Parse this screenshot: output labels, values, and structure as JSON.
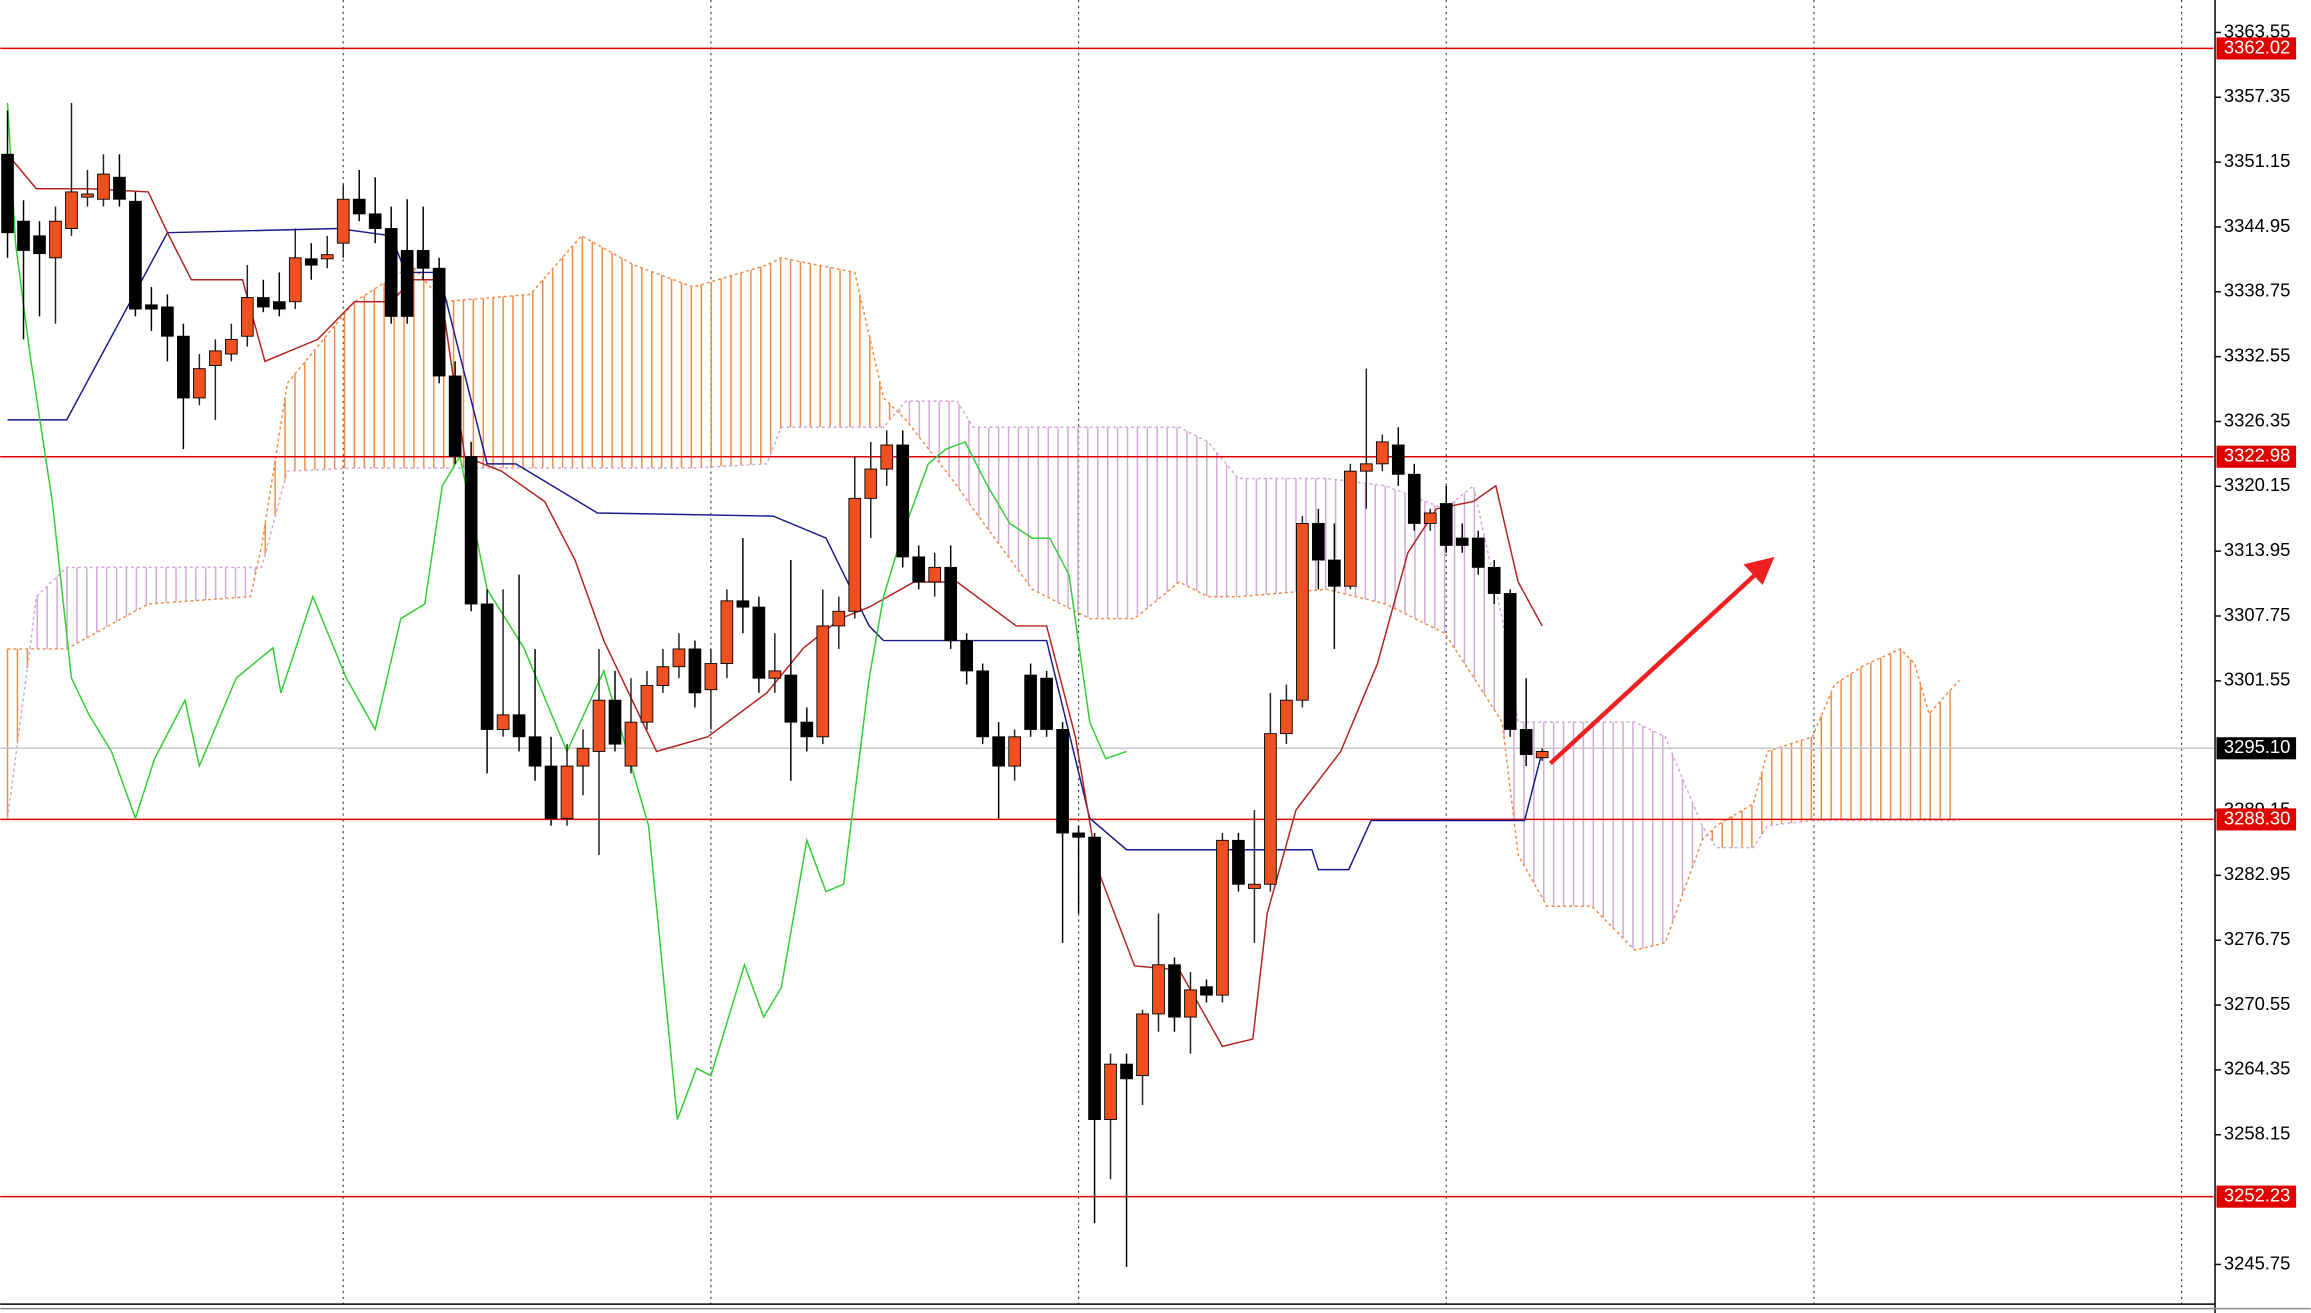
{
  "chart_data": {
    "type": "candlestick",
    "xlim": [
      -0.46,
      138
    ],
    "ylim": [
      3241.95,
      3366.65
    ],
    "yticks": [
      3363.55,
      3357.35,
      3351.15,
      3344.95,
      3338.75,
      3332.55,
      3326.35,
      3320.15,
      3313.95,
      3307.75,
      3301.55,
      3289.15,
      3282.95,
      3276.75,
      3270.55,
      3264.35,
      3258.15,
      3245.75
    ],
    "up_color": "#f0501e",
    "down_color": "#000000",
    "level_color": "#e00000",
    "levels": [
      3362.02,
      3322.98,
      {
        "value": 3288.3,
        "label": "3288.30"
      },
      3252.23
    ],
    "current_price": {
      "value": 3295.1,
      "label": "3295.10"
    },
    "candles": [
      [
        3351.9,
        3356.1,
        3342.0,
        3344.4
      ],
      [
        3345.5,
        3347.5,
        3334.2,
        3342.7
      ],
      [
        3344.1,
        3345.5,
        3336.4,
        3342.4
      ],
      [
        3342.0,
        3346.9,
        3335.7,
        3345.5
      ],
      [
        3344.8,
        3356.8,
        3344.1,
        3348.3
      ],
      [
        3347.8,
        3350.4,
        3346.9,
        3348.1
      ],
      [
        3347.6,
        3351.9,
        3346.9,
        3350.0
      ],
      [
        3349.7,
        3351.9,
        3346.9,
        3347.6
      ],
      [
        3347.4,
        3348.3,
        3336.4,
        3337.1
      ],
      [
        3337.5,
        3339.2,
        3335.0,
        3337.1
      ],
      [
        3337.3,
        3338.5,
        3332.1,
        3334.5
      ],
      [
        3334.5,
        3335.7,
        3323.7,
        3328.6
      ],
      [
        3328.6,
        3332.8,
        3327.9,
        3331.4
      ],
      [
        3331.7,
        3334.2,
        3326.5,
        3333.1
      ],
      [
        3332.8,
        3335.7,
        3332.1,
        3334.2
      ],
      [
        3334.5,
        3341.3,
        3333.5,
        3338.2
      ],
      [
        3338.2,
        3339.9,
        3336.8,
        3337.3
      ],
      [
        3337.8,
        3340.6,
        3336.4,
        3337.1
      ],
      [
        3337.8,
        3344.8,
        3337.1,
        3342.0
      ],
      [
        3341.9,
        3343.4,
        3339.9,
        3341.3
      ],
      [
        3341.9,
        3344.1,
        3341.0,
        3342.3
      ],
      [
        3343.4,
        3349.0,
        3342.0,
        3347.6
      ],
      [
        3347.6,
        3350.4,
        3345.5,
        3346.2
      ],
      [
        3346.2,
        3349.7,
        3343.4,
        3344.8
      ],
      [
        3344.8,
        3346.9,
        3335.7,
        3336.4
      ],
      [
        3342.7,
        3347.6,
        3335.7,
        3336.4
      ],
      [
        3342.7,
        3346.9,
        3339.9,
        3341.0
      ],
      [
        3341.0,
        3342.0,
        3330.0,
        3330.7
      ],
      [
        3330.7,
        3332.1,
        3322.3,
        3323.0
      ],
      [
        3323.0,
        3324.4,
        3308.2,
        3308.9
      ],
      [
        3308.9,
        3310.3,
        3292.7,
        3296.9
      ],
      [
        3296.9,
        3310.3,
        3296.2,
        3298.3
      ],
      [
        3298.3,
        3311.7,
        3294.8,
        3296.2
      ],
      [
        3296.2,
        3304.6,
        3292.0,
        3293.4
      ],
      [
        3293.4,
        3296.2,
        3287.7,
        3288.4
      ],
      [
        3288.4,
        3295.5,
        3287.7,
        3293.4
      ],
      [
        3293.4,
        3296.9,
        3290.6,
        3295.1
      ],
      [
        3294.8,
        3304.6,
        3284.9,
        3299.7
      ],
      [
        3299.7,
        3302.5,
        3294.8,
        3295.5
      ],
      [
        3293.4,
        3301.8,
        3292.7,
        3297.6
      ],
      [
        3297.6,
        3302.5,
        3296.9,
        3301.1
      ],
      [
        3301.1,
        3304.6,
        3300.4,
        3302.9
      ],
      [
        3302.9,
        3306.1,
        3301.8,
        3304.6
      ],
      [
        3304.6,
        3305.4,
        3299.0,
        3300.4
      ],
      [
        3300.7,
        3304.6,
        3296.9,
        3303.2
      ],
      [
        3303.2,
        3310.3,
        3301.8,
        3309.2
      ],
      [
        3309.2,
        3315.2,
        3306.1,
        3308.6
      ],
      [
        3308.6,
        3309.6,
        3300.4,
        3301.8
      ],
      [
        3301.8,
        3306.1,
        3300.4,
        3302.5
      ],
      [
        3302.1,
        3313.1,
        3292.0,
        3297.6
      ],
      [
        3297.6,
        3299.0,
        3294.8,
        3296.2
      ],
      [
        3296.2,
        3310.3,
        3295.5,
        3306.8
      ],
      [
        3306.8,
        3309.6,
        3304.6,
        3308.2
      ],
      [
        3308.2,
        3323.0,
        3307.5,
        3319.0
      ],
      [
        3319.0,
        3324.4,
        3315.2,
        3321.8
      ],
      [
        3321.8,
        3325.5,
        3320.2,
        3324.1
      ],
      [
        3324.1,
        3325.5,
        3312.4,
        3313.4
      ],
      [
        3313.4,
        3314.5,
        3310.3,
        3311.0
      ],
      [
        3311.0,
        3313.8,
        3309.6,
        3312.4
      ],
      [
        3312.4,
        3314.5,
        3304.6,
        3305.4
      ],
      [
        3305.4,
        3306.1,
        3301.2,
        3302.5
      ],
      [
        3302.5,
        3303.2,
        3295.5,
        3296.2
      ],
      [
        3296.2,
        3297.6,
        3288.4,
        3293.4
      ],
      [
        3293.4,
        3296.9,
        3292.0,
        3296.2
      ],
      [
        3302.1,
        3303.2,
        3296.2,
        3296.9
      ],
      [
        3301.8,
        3302.5,
        3296.2,
        3296.9
      ],
      [
        3296.9,
        3297.6,
        3276.5,
        3287.0
      ],
      [
        3287.0,
        3287.7,
        3279.3,
        3286.6
      ],
      [
        3286.6,
        3287.0,
        3249.7,
        3259.6
      ],
      [
        3259.6,
        3265.9,
        3253.9,
        3264.9
      ],
      [
        3264.9,
        3265.9,
        3245.5,
        3263.5
      ],
      [
        3263.8,
        3270.1,
        3261.0,
        3269.7
      ],
      [
        3269.7,
        3279.3,
        3268.0,
        3274.4
      ],
      [
        3274.4,
        3275.1,
        3268.0,
        3269.4
      ],
      [
        3269.4,
        3273.7,
        3265.9,
        3272.0
      ],
      [
        3272.3,
        3273.0,
        3270.8,
        3271.5
      ],
      [
        3271.5,
        3287.0,
        3270.8,
        3286.3
      ],
      [
        3286.3,
        3287.0,
        3281.4,
        3282.1
      ],
      [
        3281.7,
        3289.2,
        3276.5,
        3282.1
      ],
      [
        3282.1,
        3300.4,
        3281.4,
        3296.5
      ],
      [
        3296.5,
        3301.2,
        3295.5,
        3299.7
      ],
      [
        3299.7,
        3317.3,
        3299.0,
        3316.6
      ],
      [
        3316.6,
        3318.0,
        3310.3,
        3313.1
      ],
      [
        3313.1,
        3316.6,
        3304.6,
        3310.6
      ],
      [
        3310.6,
        3322.3,
        3310.3,
        3321.6
      ],
      [
        3321.6,
        3331.4,
        3318.0,
        3322.3
      ],
      [
        3322.3,
        3325.1,
        3321.6,
        3324.4
      ],
      [
        3324.1,
        3325.8,
        3320.2,
        3321.3
      ],
      [
        3321.3,
        3322.3,
        3315.9,
        3316.6
      ],
      [
        3316.6,
        3318.0,
        3315.9,
        3317.6
      ],
      [
        3318.5,
        3320.2,
        3313.8,
        3314.5
      ],
      [
        3315.2,
        3316.6,
        3313.8,
        3314.5
      ],
      [
        3315.2,
        3315.9,
        3311.7,
        3312.4
      ],
      [
        3312.4,
        3313.1,
        3308.9,
        3309.9
      ],
      [
        3309.9,
        3310.3,
        3296.2,
        3296.9
      ],
      [
        3296.9,
        3301.8,
        3293.4,
        3294.5
      ],
      [
        3294.2,
        3295.1,
        3293.9,
        3294.8
      ]
    ],
    "lines": [
      {
        "color": "#1a1a8c",
        "x": [
          0,
          3.7,
          10,
          20.7,
          24,
          24.9,
          27,
          30,
          31.8,
          36.9,
          47.9,
          51.2,
          53.9,
          54.8,
          65,
          67.7,
          70,
          81.6,
          82,
          83.9,
          85.3,
          94.9,
          96
        ],
        "values": [
          3326.5,
          3326.5,
          3344.4,
          3344.8,
          3344.1,
          3340.6,
          3340.6,
          3322.3,
          3322.3,
          3317.6,
          3317.3,
          3315.2,
          3306.8,
          3305.4,
          3305.4,
          3288.4,
          3285.4,
          3285.4,
          3283.5,
          3283.5,
          3288.2,
          3288.2,
          3294.8
        ]
      },
      {
        "color": "#b22222",
        "x": [
          0,
          1.8,
          5.1,
          8.8,
          10.1,
          11.5,
          14.7,
          16.1,
          19.4,
          21.7,
          24,
          25.3,
          27,
          28.6,
          30.9,
          33.6,
          35.5,
          37.3,
          40.6,
          43.8,
          47.5,
          49.8,
          52.1,
          53.9,
          56.7,
          59.4,
          63.1,
          65,
          66.8,
          68.2,
          70.5,
          73.3,
          76,
          77.9,
          78.8,
          80.6,
          83.4,
          85.7,
          87.6,
          89.4,
          91.7,
          93.1,
          94.5,
          96
        ],
        "values": [
          3351.9,
          3348.6,
          3348.6,
          3348.3,
          3344.1,
          3339.9,
          3339.9,
          3332.1,
          3334.2,
          3337.8,
          3337.8,
          3339.9,
          3339.9,
          3323.0,
          3321.6,
          3318.7,
          3313.1,
          3305.4,
          3294.8,
          3296.2,
          3300.4,
          3304.7,
          3307.5,
          3308.6,
          3311.0,
          3311.0,
          3306.8,
          3306.8,
          3296.2,
          3283.5,
          3274.3,
          3273.9,
          3266.6,
          3267.3,
          3279.3,
          3289.2,
          3294.8,
          3303.2,
          3313.8,
          3318.0,
          3318.7,
          3320.2,
          3311.0,
          3306.8
        ]
      },
      {
        "color": "#32cd32",
        "x": [
          0,
          0.5,
          1.4,
          2.8,
          4,
          5.1,
          6.5,
          8,
          9.2,
          11.1,
          12,
          14.3,
          16.6,
          17.1,
          19.1,
          21.2,
          23,
          24.6,
          26.1,
          27.2,
          28.3,
          30,
          32.3,
          35,
          37.3,
          40.1,
          41.9,
          43.1,
          44,
          46.1,
          47.3,
          48.4,
          50,
          51.2,
          52.3,
          53.9,
          54.8,
          55.9,
          57.6,
          58.7,
          59.9,
          61.3,
          62.7,
          64.1,
          65.2,
          66.4,
          67.7,
          68.7,
          70
        ],
        "values": [
          3356.8,
          3343.4,
          3332.8,
          3318.7,
          3301.8,
          3298.3,
          3294.8,
          3288.4,
          3294.1,
          3299.7,
          3293.4,
          3301.8,
          3304.7,
          3300.4,
          3309.6,
          3301.8,
          3296.9,
          3307.5,
          3308.9,
          3320.2,
          3323.0,
          3310.3,
          3304.7,
          3294.8,
          3302.5,
          3287.7,
          3259.6,
          3264.5,
          3263.8,
          3274.4,
          3269.4,
          3272.2,
          3286.3,
          3281.4,
          3282.1,
          3301.8,
          3309.6,
          3315.2,
          3322.3,
          3323.7,
          3324.4,
          3320.2,
          3316.6,
          3315.2,
          3315.2,
          3311.7,
          3297.6,
          3294.1,
          3294.8
        ]
      }
    ],
    "cloud": {
      "bull_color": "#f08c46",
      "bear_color": "#d2a8d8",
      "x": [
        0,
        1.4,
        1.8,
        3.7,
        8.8,
        15.2,
        15.9,
        17.5,
        21.7,
        25.3,
        27.2,
        32.7,
        35.9,
        39.2,
        42.9,
        47.5,
        48.4,
        53,
        54.8,
        56.2,
        59.4,
        60.4,
        64.1,
        67.7,
        70.5,
        73.3,
        75.1,
        77,
        82.5,
        86.2,
        89.9,
        91.7,
        93.5,
        94.5,
        96.3,
        99.1,
        101.8,
        103.7,
        106,
        106.9,
        109.2,
        110.1,
        112.9,
        114.3,
        116.1,
        118.4,
        119.3,
        120.2,
        122.1
      ],
      "span_a": [
        3304.6,
        3304.6,
        3304.6,
        3304.6,
        3308.9,
        3309.6,
        3314.5,
        3330.0,
        3337.8,
        3341.3,
        3337.8,
        3338.5,
        3344.1,
        3341.3,
        3339.2,
        3341.3,
        3342.0,
        3340.6,
        3328.6,
        3326.5,
        3320.2,
        3318.0,
        3310.3,
        3307.5,
        3307.5,
        3311.0,
        3309.6,
        3309.6,
        3310.3,
        3308.9,
        3306.1,
        3301.9,
        3297.6,
        3284.9,
        3280.0,
        3280.0,
        3275.8,
        3276.5,
        3286.3,
        3287.7,
        3289.8,
        3294.8,
        3296.2,
        3301.2,
        3303.0,
        3304.6,
        3303.2,
        3298.4,
        3301.6
      ],
      "span_b": [
        3288.4,
        3304.6,
        3309.6,
        3312.4,
        3312.4,
        3312.4,
        3312.4,
        3321.6,
        3321.9,
        3321.9,
        3321.9,
        3321.9,
        3321.9,
        3321.9,
        3321.9,
        3322.3,
        3325.8,
        3325.8,
        3325.8,
        3328.3,
        3328.3,
        3325.8,
        3325.8,
        3325.8,
        3325.8,
        3325.8,
        3324.4,
        3320.9,
        3320.9,
        3320.2,
        3318.0,
        3320.2,
        3307.5,
        3297.6,
        3297.6,
        3297.6,
        3297.6,
        3296.2,
        3287.7,
        3285.6,
        3285.6,
        3287.7,
        3288.2,
        3288.2,
        3288.2,
        3288.2,
        3288.2,
        3288.2,
        3288.2
      ]
    }
  }
}
